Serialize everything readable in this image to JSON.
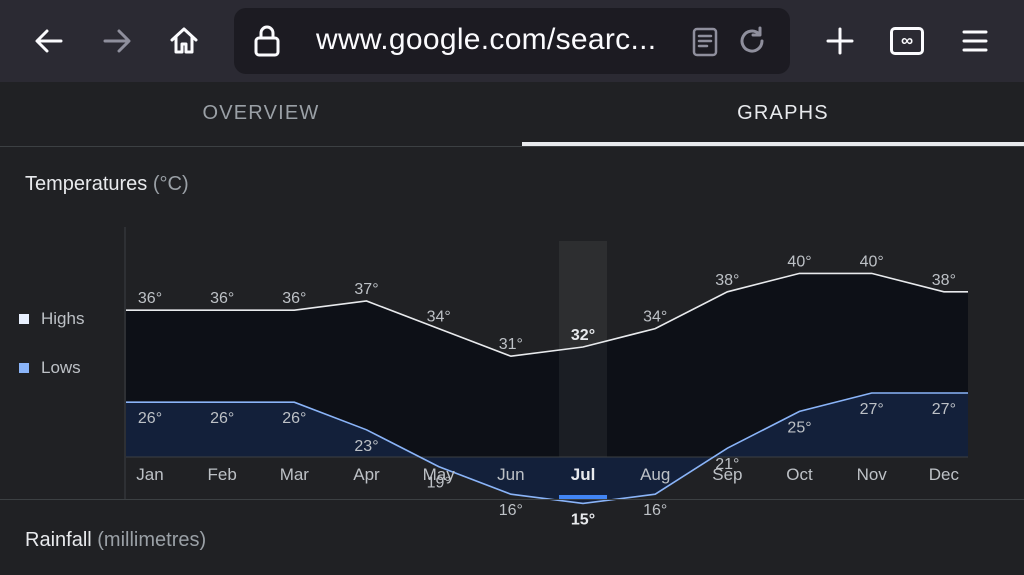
{
  "browser": {
    "url": "www.google.com/searc...",
    "icons": [
      "back-arrow-icon",
      "forward-arrow-icon",
      "home-icon",
      "lock-icon",
      "reader-view-icon",
      "reload-icon",
      "new-tab-icon",
      "tab-counter-icon",
      "menu-icon"
    ],
    "tab_count": "∞"
  },
  "tabs": [
    {
      "label": "OVERVIEW",
      "active": false
    },
    {
      "label": "GRAPHS",
      "active": true
    }
  ],
  "sections": {
    "temperatures": {
      "title": "Temperatures",
      "unit": "(°C)"
    },
    "rainfall": {
      "title": "Rainfall",
      "unit": "(millimetres)"
    }
  },
  "legend": {
    "highs": {
      "label": "Highs",
      "color": "#e8f0fe"
    },
    "lows": {
      "label": "Lows",
      "color": "#8ab4f8"
    }
  },
  "chart_data": {
    "type": "area",
    "categories": [
      "Jan",
      "Feb",
      "Mar",
      "Apr",
      "May",
      "Jun",
      "Jul",
      "Aug",
      "Sep",
      "Oct",
      "Nov",
      "Dec"
    ],
    "highlighted_category": "Jul",
    "series": [
      {
        "name": "Highs",
        "values": [
          36,
          36,
          36,
          37,
          34,
          31,
          32,
          34,
          38,
          40,
          40,
          38
        ],
        "color": "#e8eaed"
      },
      {
        "name": "Lows",
        "values": [
          26,
          26,
          26,
          23,
          19,
          16,
          15,
          16,
          21,
          25,
          27,
          27
        ],
        "color": "#8ab4f8"
      }
    ],
    "value_suffix": "°",
    "ylim": [
      8,
      48
    ],
    "grid": false
  }
}
